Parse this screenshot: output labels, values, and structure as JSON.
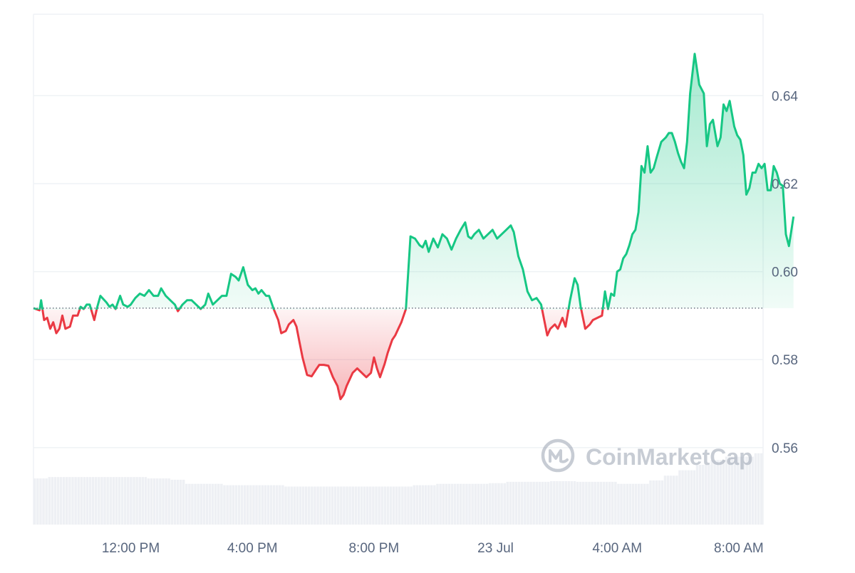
{
  "chart_data": {
    "type": "area",
    "baseline": 0.5917,
    "ylim": [
      0.5425,
      0.6585
    ],
    "y_ticks": [
      {
        "value": 0.56,
        "label": "0.56"
      },
      {
        "value": 0.58,
        "label": "0.58"
      },
      {
        "value": 0.6,
        "label": "0.60"
      },
      {
        "value": 0.62,
        "label": "0.62"
      },
      {
        "value": 0.64,
        "label": "0.64"
      }
    ],
    "x_range_hours": [
      -1.2,
      22.8
    ],
    "x_ticks": [
      {
        "hour": 2,
        "label": "12:00 PM"
      },
      {
        "hour": 6,
        "label": "4:00 PM"
      },
      {
        "hour": 10,
        "label": "8:00 PM"
      },
      {
        "hour": 14,
        "label": "23 Jul"
      },
      {
        "hour": 18,
        "label": "4:00 AM"
      },
      {
        "hour": 22,
        "label": "8:00 AM"
      }
    ],
    "series": [
      {
        "points": [
          [
            -1.2,
            0.5917
          ],
          [
            -1.0,
            0.5912
          ],
          [
            -0.95,
            0.5935
          ],
          [
            -0.85,
            0.589
          ],
          [
            -0.75,
            0.5895
          ],
          [
            -0.65,
            0.587
          ],
          [
            -0.55,
            0.5885
          ],
          [
            -0.45,
            0.586
          ],
          [
            -0.35,
            0.587
          ],
          [
            -0.25,
            0.59
          ],
          [
            -0.15,
            0.587
          ],
          [
            0.0,
            0.5875
          ],
          [
            0.1,
            0.59
          ],
          [
            0.25,
            0.59
          ],
          [
            0.35,
            0.592
          ],
          [
            0.45,
            0.5915
          ],
          [
            0.55,
            0.5925
          ],
          [
            0.65,
            0.5925
          ],
          [
            0.8,
            0.589
          ],
          [
            0.9,
            0.592
          ],
          [
            1.0,
            0.5945
          ],
          [
            1.2,
            0.593
          ],
          [
            1.3,
            0.592
          ],
          [
            1.4,
            0.5925
          ],
          [
            1.5,
            0.5915
          ],
          [
            1.65,
            0.5945
          ],
          [
            1.75,
            0.5925
          ],
          [
            1.9,
            0.592
          ],
          [
            2.0,
            0.5925
          ],
          [
            2.15,
            0.594
          ],
          [
            2.3,
            0.595
          ],
          [
            2.45,
            0.5945
          ],
          [
            2.6,
            0.5958
          ],
          [
            2.75,
            0.5945
          ],
          [
            2.9,
            0.5945
          ],
          [
            3.0,
            0.5962
          ],
          [
            3.15,
            0.5945
          ],
          [
            3.3,
            0.5935
          ],
          [
            3.45,
            0.5925
          ],
          [
            3.55,
            0.591
          ],
          [
            3.7,
            0.5925
          ],
          [
            3.85,
            0.5935
          ],
          [
            4.0,
            0.5935
          ],
          [
            4.15,
            0.5925
          ],
          [
            4.3,
            0.5915
          ],
          [
            4.45,
            0.5925
          ],
          [
            4.55,
            0.595
          ],
          [
            4.7,
            0.5925
          ],
          [
            4.85,
            0.5935
          ],
          [
            5.0,
            0.5945
          ],
          [
            5.15,
            0.5945
          ],
          [
            5.3,
            0.5995
          ],
          [
            5.45,
            0.5988
          ],
          [
            5.55,
            0.598
          ],
          [
            5.7,
            0.601
          ],
          [
            5.85,
            0.597
          ],
          [
            6.0,
            0.5958
          ],
          [
            6.1,
            0.5962
          ],
          [
            6.2,
            0.595
          ],
          [
            6.3,
            0.5958
          ],
          [
            6.45,
            0.5945
          ],
          [
            6.55,
            0.5945
          ],
          [
            6.7,
            0.5915
          ],
          [
            6.85,
            0.589
          ],
          [
            6.95,
            0.586
          ],
          [
            7.1,
            0.5865
          ],
          [
            7.2,
            0.588
          ],
          [
            7.35,
            0.589
          ],
          [
            7.45,
            0.5875
          ],
          [
            7.55,
            0.584
          ],
          [
            7.65,
            0.5805
          ],
          [
            7.8,
            0.5765
          ],
          [
            7.95,
            0.5762
          ],
          [
            8.1,
            0.5778
          ],
          [
            8.2,
            0.5788
          ],
          [
            8.35,
            0.5788
          ],
          [
            8.5,
            0.5786
          ],
          [
            8.65,
            0.576
          ],
          [
            8.8,
            0.574
          ],
          [
            8.9,
            0.571
          ],
          [
            9.0,
            0.572
          ],
          [
            9.1,
            0.574
          ],
          [
            9.3,
            0.577
          ],
          [
            9.45,
            0.578
          ],
          [
            9.6,
            0.577
          ],
          [
            9.75,
            0.576
          ],
          [
            9.9,
            0.577
          ],
          [
            10.0,
            0.5805
          ],
          [
            10.1,
            0.578
          ],
          [
            10.2,
            0.576
          ],
          [
            10.35,
            0.579
          ],
          [
            10.45,
            0.5815
          ],
          [
            10.6,
            0.5845
          ],
          [
            10.7,
            0.5855
          ],
          [
            10.8,
            0.587
          ],
          [
            10.9,
            0.5885
          ],
          [
            11.05,
            0.5915
          ],
          [
            11.2,
            0.608
          ],
          [
            11.35,
            0.6075
          ],
          [
            11.5,
            0.606
          ],
          [
            11.6,
            0.6055
          ],
          [
            11.7,
            0.607
          ],
          [
            11.8,
            0.6045
          ],
          [
            11.95,
            0.6075
          ],
          [
            12.1,
            0.6055
          ],
          [
            12.25,
            0.6085
          ],
          [
            12.4,
            0.6075
          ],
          [
            12.55,
            0.605
          ],
          [
            12.7,
            0.6075
          ],
          [
            12.85,
            0.6095
          ],
          [
            13.0,
            0.6112
          ],
          [
            13.1,
            0.608
          ],
          [
            13.2,
            0.6075
          ],
          [
            13.3,
            0.6085
          ],
          [
            13.45,
            0.6095
          ],
          [
            13.6,
            0.6075
          ],
          [
            13.75,
            0.6085
          ],
          [
            13.9,
            0.6095
          ],
          [
            14.05,
            0.6075
          ],
          [
            14.2,
            0.6085
          ],
          [
            14.35,
            0.6095
          ],
          [
            14.5,
            0.6105
          ],
          [
            14.6,
            0.609
          ],
          [
            14.75,
            0.6035
          ],
          [
            14.9,
            0.6005
          ],
          [
            15.05,
            0.5955
          ],
          [
            15.2,
            0.5935
          ],
          [
            15.35,
            0.594
          ],
          [
            15.5,
            0.5925
          ],
          [
            15.6,
            0.589
          ],
          [
            15.7,
            0.5855
          ],
          [
            15.8,
            0.587
          ],
          [
            15.95,
            0.588
          ],
          [
            16.05,
            0.587
          ],
          [
            16.2,
            0.5895
          ],
          [
            16.3,
            0.5875
          ],
          [
            16.45,
            0.5935
          ],
          [
            16.6,
            0.5985
          ],
          [
            16.7,
            0.597
          ],
          [
            16.8,
            0.592
          ],
          [
            16.95,
            0.587
          ],
          [
            17.1,
            0.588
          ],
          [
            17.2,
            0.589
          ],
          [
            17.35,
            0.5895
          ],
          [
            17.5,
            0.59
          ],
          [
            17.6,
            0.5955
          ],
          [
            17.7,
            0.5915
          ],
          [
            17.8,
            0.595
          ],
          [
            17.9,
            0.5945
          ],
          [
            18.0,
            0.6
          ],
          [
            18.1,
            0.6005
          ],
          [
            18.2,
            0.603
          ],
          [
            18.3,
            0.604
          ],
          [
            18.4,
            0.606
          ],
          [
            18.5,
            0.6085
          ],
          [
            18.6,
            0.6095
          ],
          [
            18.7,
            0.6135
          ],
          [
            18.8,
            0.624
          ],
          [
            18.9,
            0.6225
          ],
          [
            19.0,
            0.6285
          ],
          [
            19.1,
            0.6225
          ],
          [
            19.2,
            0.6235
          ],
          [
            19.3,
            0.626
          ],
          [
            19.45,
            0.6295
          ],
          [
            19.6,
            0.6305
          ],
          [
            19.7,
            0.6315
          ],
          [
            19.8,
            0.6315
          ],
          [
            19.9,
            0.6295
          ],
          [
            20.0,
            0.627
          ],
          [
            20.1,
            0.625
          ],
          [
            20.2,
            0.6235
          ],
          [
            20.3,
            0.6295
          ],
          [
            20.4,
            0.6405
          ],
          [
            20.55,
            0.6495
          ],
          [
            20.7,
            0.6425
          ],
          [
            20.85,
            0.6405
          ],
          [
            20.95,
            0.6285
          ],
          [
            21.05,
            0.6335
          ],
          [
            21.15,
            0.6345
          ],
          [
            21.3,
            0.6285
          ],
          [
            21.4,
            0.6305
          ],
          [
            21.5,
            0.638
          ],
          [
            21.6,
            0.6365
          ],
          [
            21.7,
            0.6388
          ],
          [
            21.85,
            0.633
          ],
          [
            21.95,
            0.631
          ],
          [
            22.05,
            0.63
          ],
          [
            22.15,
            0.6265
          ],
          [
            22.25,
            0.6175
          ],
          [
            22.35,
            0.619
          ],
          [
            22.45,
            0.6225
          ],
          [
            22.55,
            0.6225
          ],
          [
            22.65,
            0.6245
          ],
          [
            22.75,
            0.6235
          ],
          [
            22.85,
            0.6245
          ],
          [
            22.95,
            0.6185
          ],
          [
            23.05,
            0.6185
          ],
          [
            23.15,
            0.624
          ],
          [
            23.25,
            0.6225
          ],
          [
            23.35,
            0.62
          ],
          [
            23.45,
            0.6195
          ],
          [
            23.55,
            0.6085
          ],
          [
            23.65,
            0.6058
          ],
          [
            23.8,
            0.6125
          ]
        ]
      }
    ],
    "volume": {
      "levels": [
        [
          -1.2,
          0.68
        ],
        [
          -0.75,
          0.7
        ],
        [
          2.45,
          0.68
        ],
        [
          3.25,
          0.66
        ],
        [
          3.75,
          0.6
        ],
        [
          5.0,
          0.58
        ],
        [
          7.0,
          0.56
        ],
        [
          10.0,
          0.56
        ],
        [
          11.25,
          0.58
        ],
        [
          12.0,
          0.6
        ],
        [
          13.75,
          0.61
        ],
        [
          14.3,
          0.63
        ],
        [
          15.7,
          0.64
        ],
        [
          16.6,
          0.63
        ],
        [
          17.5,
          0.63
        ],
        [
          18.0,
          0.6
        ],
        [
          19.0,
          0.65
        ],
        [
          19.5,
          0.72
        ],
        [
          20.0,
          0.8
        ],
        [
          20.5,
          0.88
        ],
        [
          21.0,
          0.95
        ],
        [
          21.5,
          1.0
        ],
        [
          22.5,
          1.05
        ],
        [
          23.8,
          1.1
        ]
      ]
    },
    "grid": true,
    "colors": {
      "up_line": "#16c784",
      "down_line": "#ea3943",
      "up_fill_top": "#16c784",
      "down_fill_bottom": "#ea3943",
      "grid": "#eff2f5",
      "baseline": "#6b7280",
      "volume": "#eef0f4",
      "axis_text": "#58667e"
    }
  },
  "watermark": {
    "text": "CoinMarketCap",
    "icon": "coinmarketcap-logo-icon"
  }
}
